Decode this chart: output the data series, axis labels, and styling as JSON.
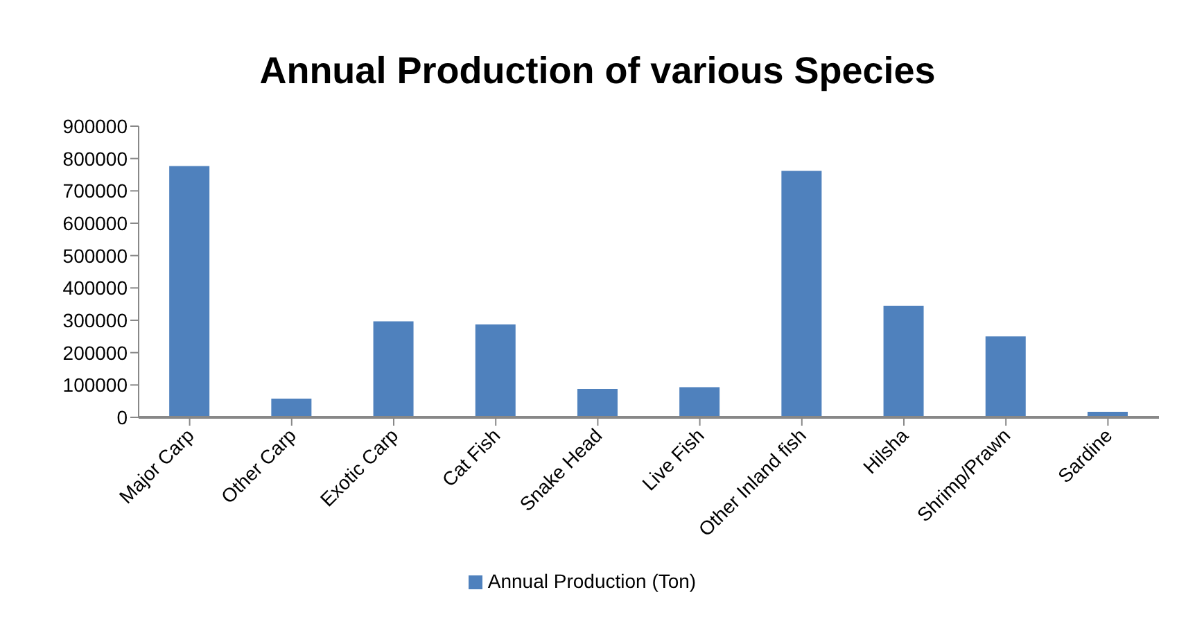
{
  "chart_data": {
    "type": "bar",
    "title": "Annual Production of various Species",
    "categories": [
      "Major Carp",
      "Other Carp",
      "Exotic Carp",
      "Cat Fish",
      "Snake Head",
      "Live Fish",
      "Other Inland fish",
      "Hilsha",
      "Shrimp/Prawn",
      "Sardine"
    ],
    "series": [
      {
        "name": "Annual Production (Ton)",
        "color": "#4f81bd",
        "values": [
          777000,
          58000,
          297000,
          287000,
          88000,
          93000,
          762000,
          345000,
          250000,
          17000
        ]
      }
    ],
    "ylim": [
      0,
      900000
    ],
    "yticks": [
      0,
      100000,
      200000,
      300000,
      400000,
      500000,
      600000,
      700000,
      800000,
      900000
    ],
    "grid": false,
    "legend": "bottom"
  }
}
